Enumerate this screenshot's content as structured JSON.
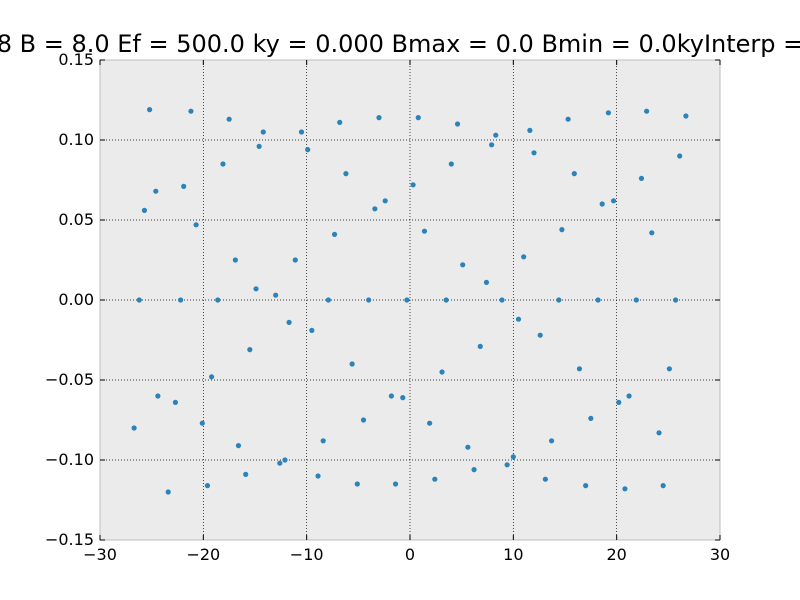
{
  "chart_data": {
    "type": "scatter",
    "title": "8 B = 8.0 Ef = 500.0 ky = 0.000 Bmax = 0.0 Bmin = 0.0kyInterp =",
    "xlabel": "",
    "ylabel": "",
    "xlim": [
      -30,
      30
    ],
    "ylim": [
      -0.15,
      0.15
    ],
    "x_ticks": [
      -30,
      -20,
      -10,
      0,
      10,
      20,
      30
    ],
    "y_ticks": [
      -0.15,
      -0.1,
      -0.05,
      0.0,
      0.05,
      0.1,
      0.15
    ],
    "x_tick_labels": [
      "−30",
      "−20",
      "−10",
      "0",
      "10",
      "20",
      "30"
    ],
    "y_tick_labels": [
      "−0.15",
      "−0.10",
      "−0.05",
      "0.00",
      "0.05",
      "0.10",
      "0.15"
    ],
    "grid": true,
    "background": "#ebebeb",
    "marker_color": "#2b83ba",
    "series": [
      {
        "x": [
          -25.2,
          -21.2,
          -17.5,
          -14.2,
          -10.5,
          -6.8,
          -3.0,
          0.8,
          4.6,
          8.3,
          11.6,
          15.3,
          19.2,
          22.9,
          26.7,
          -14.6,
          -9.9,
          7.9,
          12.0,
          -18.1,
          -6.2,
          4.0,
          15.9,
          26.1,
          -24.6,
          -21.9,
          0.3,
          22.4,
          -25.7,
          -20.7,
          -3.4,
          -2.4,
          18.6,
          19.7,
          -7.3,
          1.4,
          14.7,
          23.4,
          -16.9,
          -11.1,
          5.1,
          7.4,
          11.0,
          -14.9,
          -13.0,
          -26.2,
          -22.2,
          -18.6,
          -7.9,
          -4.0,
          -0.3,
          3.5,
          8.9,
          14.4,
          18.2,
          21.9,
          25.7,
          -11.7,
          -9.5,
          10.5,
          12.6,
          -15.5,
          6.8,
          -5.6,
          16.4,
          25.1,
          -19.2,
          3.1,
          -24.4,
          -22.7,
          -1.8,
          -0.7,
          20.2,
          21.2,
          -4.5,
          -20.1,
          1.9,
          17.5,
          -26.7,
          24.1,
          -16.6,
          -8.4,
          13.7,
          -12.1,
          5.6,
          -12.6,
          6.2,
          9.4,
          10.0,
          -15.9,
          -8.9,
          2.4,
          13.1,
          -19.6,
          -5.1,
          -1.4,
          17.0,
          24.5,
          -23.4,
          20.8
        ],
        "y": [
          0.119,
          0.118,
          0.113,
          0.105,
          0.105,
          0.111,
          0.114,
          0.114,
          0.11,
          0.103,
          0.106,
          0.113,
          0.117,
          0.118,
          0.115,
          0.096,
          0.094,
          0.097,
          0.092,
          0.085,
          0.079,
          0.085,
          0.079,
          0.09,
          0.068,
          0.071,
          0.072,
          0.076,
          0.056,
          0.047,
          0.057,
          0.062,
          0.06,
          0.062,
          0.041,
          0.043,
          0.044,
          0.042,
          0.025,
          0.025,
          0.022,
          0.011,
          0.027,
          0.007,
          0.003,
          0.0,
          0.0,
          0.0,
          0.0,
          0.0,
          0.0,
          0.0,
          0.0,
          0.0,
          0.0,
          0.0,
          0.0,
          -0.014,
          -0.019,
          -0.012,
          -0.022,
          -0.031,
          -0.029,
          -0.04,
          -0.043,
          -0.043,
          -0.048,
          -0.045,
          -0.06,
          -0.064,
          -0.06,
          -0.061,
          -0.064,
          -0.06,
          -0.075,
          -0.077,
          -0.077,
          -0.074,
          -0.08,
          -0.083,
          -0.091,
          -0.088,
          -0.088,
          -0.1,
          -0.092,
          -0.102,
          -0.106,
          -0.103,
          -0.098,
          -0.109,
          -0.11,
          -0.112,
          -0.112,
          -0.116,
          -0.115,
          -0.115,
          -0.116,
          -0.116,
          -0.12,
          -0.118
        ]
      }
    ]
  }
}
